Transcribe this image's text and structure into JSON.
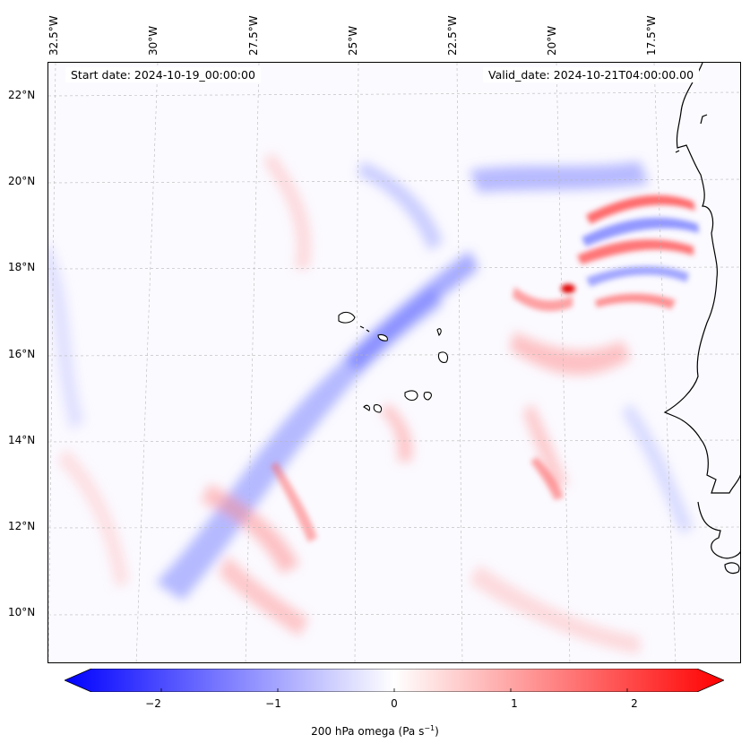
{
  "map": {
    "start_date": "Start date: 2024-10-19_00:00:00",
    "valid_date": "Valid_date: 2024-10-21T04:00:00.00",
    "lon_labels": [
      "32.5°W",
      "30°W",
      "27.5°W",
      "25°W",
      "22.5°W",
      "20°W",
      "17.5°W"
    ],
    "lat_labels": [
      "22°N",
      "20°N",
      "18°N",
      "16°N",
      "14°N",
      "12°N",
      "10°N"
    ],
    "field_colors": {
      "negative": "#0000ff",
      "zero": "#ffffff",
      "positive": "#ff0000",
      "coastline": "#000000"
    }
  },
  "colorbar": {
    "range": [
      -2.6,
      2.6
    ],
    "extend": "both",
    "ticks": [
      "−2",
      "−1",
      "0",
      "1",
      "2"
    ],
    "tick_values": [
      -2,
      -1,
      0,
      1,
      2
    ],
    "label": "200 hPa omega (Pa s",
    "label_sup": "−1",
    "label_end": ")",
    "cmap": "bwr"
  }
}
